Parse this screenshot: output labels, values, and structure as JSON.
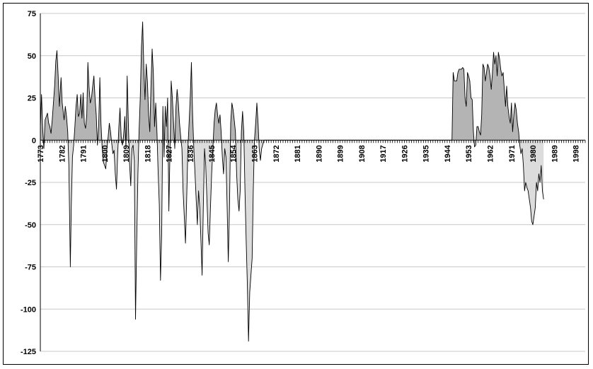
{
  "chart_data": {
    "type": "area",
    "title": "",
    "xlabel": "",
    "ylabel": "",
    "xlim": [
      1773,
      2002
    ],
    "ylim": [
      -125,
      75
    ],
    "y_ticks": [
      -125,
      -100,
      -75,
      -50,
      -25,
      0,
      25,
      50,
      75
    ],
    "x_tick_labels": [
      "1773",
      "1782",
      "1791",
      "1800",
      "1809",
      "1818",
      "1827",
      "1836",
      "1845",
      "1854",
      "1863",
      "1872",
      "1881",
      "1890",
      "1899",
      "1908",
      "1917",
      "1926",
      "1935",
      "1944",
      "1953",
      "1962",
      "1971",
      "1980",
      "1989",
      "1998"
    ],
    "grid": "horizontal",
    "fill_positive": "#b4b4b4",
    "fill_negative": "#dcdcdc",
    "line_color": "#000000",
    "points": [
      [
        1773,
        8
      ],
      [
        1773.5,
        27
      ],
      [
        1774,
        6
      ],
      [
        1774.5,
        -5
      ],
      [
        1775,
        12
      ],
      [
        1776,
        16
      ],
      [
        1776.5,
        10
      ],
      [
        1777,
        8
      ],
      [
        1777.5,
        4
      ],
      [
        1778,
        12
      ],
      [
        1779,
        32
      ],
      [
        1779.5,
        47
      ],
      [
        1780,
        53
      ],
      [
        1780.5,
        38
      ],
      [
        1781,
        20
      ],
      [
        1781.7,
        37
      ],
      [
        1782.2,
        22
      ],
      [
        1783,
        12
      ],
      [
        1783.5,
        20
      ],
      [
        1784,
        14
      ],
      [
        1784.5,
        5
      ],
      [
        1785,
        -15
      ],
      [
        1785.6,
        -75
      ],
      [
        1786,
        -40
      ],
      [
        1786.5,
        -10
      ],
      [
        1787,
        -3
      ],
      [
        1787.5,
        8
      ],
      [
        1788,
        20
      ],
      [
        1788.5,
        27
      ],
      [
        1789,
        14
      ],
      [
        1789.5,
        16
      ],
      [
        1790,
        27
      ],
      [
        1790.5,
        13
      ],
      [
        1791,
        28
      ],
      [
        1791.5,
        10
      ],
      [
        1792,
        7
      ],
      [
        1792.5,
        15
      ],
      [
        1793,
        46
      ],
      [
        1793.5,
        31
      ],
      [
        1794,
        22
      ],
      [
        1794.5,
        25
      ],
      [
        1795,
        32
      ],
      [
        1795.5,
        38
      ],
      [
        1796,
        25
      ],
      [
        1796.5,
        15
      ],
      [
        1797,
        -3
      ],
      [
        1797.5,
        8
      ],
      [
        1798,
        37
      ],
      [
        1798.5,
        10
      ],
      [
        1799,
        -5
      ],
      [
        1799.5,
        -13
      ],
      [
        1800,
        -15
      ],
      [
        1800.5,
        -17
      ],
      [
        1801,
        -5
      ],
      [
        1801.5,
        2
      ],
      [
        1802,
        10
      ],
      [
        1802.5,
        5
      ],
      [
        1803,
        -2
      ],
      [
        1803.5,
        -8
      ],
      [
        1804,
        -6
      ],
      [
        1804.5,
        -20
      ],
      [
        1805,
        -29
      ],
      [
        1805.5,
        -8
      ],
      [
        1806,
        8
      ],
      [
        1806.5,
        19
      ],
      [
        1807,
        2
      ],
      [
        1807.5,
        -3
      ],
      [
        1808,
        3
      ],
      [
        1808.5,
        14
      ],
      [
        1809,
        -5
      ],
      [
        1809.5,
        38
      ],
      [
        1810,
        10
      ],
      [
        1810.5,
        -14
      ],
      [
        1811,
        -27
      ],
      [
        1811.5,
        -5
      ],
      [
        1812,
        -3
      ],
      [
        1812.5,
        -12
      ],
      [
        1813,
        -106
      ],
      [
        1813.5,
        -60
      ],
      [
        1814,
        -20
      ],
      [
        1814.5,
        5
      ],
      [
        1815,
        25
      ],
      [
        1815.5,
        55
      ],
      [
        1816,
        70
      ],
      [
        1816.5,
        42
      ],
      [
        1817,
        24
      ],
      [
        1817.5,
        45
      ],
      [
        1818,
        35
      ],
      [
        1818.5,
        15
      ],
      [
        1819,
        5
      ],
      [
        1819.5,
        33
      ],
      [
        1820,
        54
      ],
      [
        1820.5,
        40
      ],
      [
        1821,
        8
      ],
      [
        1821.5,
        22
      ],
      [
        1822,
        5
      ],
      [
        1822.5,
        -18
      ],
      [
        1823,
        -38
      ],
      [
        1823.5,
        -83
      ],
      [
        1824,
        -55
      ],
      [
        1824.5,
        20
      ],
      [
        1825,
        -10
      ],
      [
        1825.5,
        20
      ],
      [
        1826,
        8
      ],
      [
        1826.5,
        25
      ],
      [
        1827,
        -42
      ],
      [
        1827.5,
        -5
      ],
      [
        1828,
        35
      ],
      [
        1828.5,
        25
      ],
      [
        1829,
        10
      ],
      [
        1829.5,
        -5
      ],
      [
        1830,
        20
      ],
      [
        1830.5,
        30
      ],
      [
        1831,
        22
      ],
      [
        1831.5,
        10
      ],
      [
        1832,
        2
      ],
      [
        1832.5,
        -5
      ],
      [
        1833,
        -30
      ],
      [
        1833.5,
        -45
      ],
      [
        1834,
        -61
      ],
      [
        1834.5,
        -35
      ],
      [
        1835,
        -5
      ],
      [
        1835.5,
        10
      ],
      [
        1836,
        25
      ],
      [
        1836.5,
        46
      ],
      [
        1837,
        15
      ],
      [
        1837.5,
        -5
      ],
      [
        1838,
        -20
      ],
      [
        1838.5,
        -35
      ],
      [
        1839,
        -50
      ],
      [
        1839.5,
        -30
      ],
      [
        1840,
        -40
      ],
      [
        1840.5,
        -60
      ],
      [
        1841,
        -80
      ],
      [
        1841.5,
        -40
      ],
      [
        1842,
        -5
      ],
      [
        1842.5,
        -15
      ],
      [
        1843,
        -35
      ],
      [
        1843.5,
        -55
      ],
      [
        1844,
        -62
      ],
      [
        1844.5,
        -40
      ],
      [
        1845,
        -20
      ],
      [
        1845.5,
        -5
      ],
      [
        1846,
        10
      ],
      [
        1846.5,
        18
      ],
      [
        1847,
        22
      ],
      [
        1847.5,
        15
      ],
      [
        1848,
        10
      ],
      [
        1848.5,
        15
      ],
      [
        1849,
        5
      ],
      [
        1849.5,
        -10
      ],
      [
        1850,
        -20
      ],
      [
        1850.5,
        -5
      ],
      [
        1851,
        -10
      ],
      [
        1851.5,
        -40
      ],
      [
        1852,
        -72
      ],
      [
        1852.5,
        -40
      ],
      [
        1853,
        10
      ],
      [
        1853.5,
        22
      ],
      [
        1854,
        18
      ],
      [
        1854.5,
        12
      ],
      [
        1855,
        5
      ],
      [
        1855.5,
        -20
      ],
      [
        1856,
        -35
      ],
      [
        1856.5,
        -42
      ],
      [
        1857,
        -30
      ],
      [
        1857.5,
        5
      ],
      [
        1858,
        17
      ],
      [
        1858.5,
        5
      ],
      [
        1859,
        -30
      ],
      [
        1859.5,
        -60
      ],
      [
        1860,
        -85
      ],
      [
        1860.5,
        -119
      ],
      [
        1861,
        -90
      ],
      [
        1861.5,
        -80
      ],
      [
        1862,
        -70
      ],
      [
        1862.5,
        -30
      ],
      [
        1863,
        0
      ],
      [
        1863.5,
        10
      ],
      [
        1864,
        22
      ],
      [
        1864.5,
        10
      ],
      [
        1865,
        -5
      ],
      [
        1865.5,
        -12
      ],
      [
        1866,
        -5
      ],
      [
        1867,
        0
      ],
      [
        1946,
        0
      ],
      [
        1946.5,
        40
      ],
      [
        1947,
        35
      ],
      [
        1948,
        35
      ],
      [
        1948.5,
        40
      ],
      [
        1949,
        42
      ],
      [
        1950,
        42
      ],
      [
        1950.5,
        43
      ],
      [
        1951,
        42
      ],
      [
        1951.5,
        25
      ],
      [
        1952,
        20
      ],
      [
        1952.5,
        40
      ],
      [
        1953,
        38
      ],
      [
        1953.5,
        35
      ],
      [
        1954,
        25
      ],
      [
        1954.5,
        24
      ],
      [
        1955,
        5
      ],
      [
        1955.5,
        -4
      ],
      [
        1956,
        -3
      ],
      [
        1956.5,
        8
      ],
      [
        1957,
        8
      ],
      [
        1957.5,
        5
      ],
      [
        1958,
        3
      ],
      [
        1958.5,
        15
      ],
      [
        1959,
        45
      ],
      [
        1959.5,
        43
      ],
      [
        1960,
        35
      ],
      [
        1960.5,
        40
      ],
      [
        1961,
        45
      ],
      [
        1961.5,
        43
      ],
      [
        1962,
        38
      ],
      [
        1962.5,
        30
      ],
      [
        1963,
        40
      ],
      [
        1963.5,
        52
      ],
      [
        1964,
        45
      ],
      [
        1964.5,
        50
      ],
      [
        1965,
        38
      ],
      [
        1965.5,
        52
      ],
      [
        1966,
        48
      ],
      [
        1966.5,
        42
      ],
      [
        1967,
        38
      ],
      [
        1967.5,
        40
      ],
      [
        1968,
        30
      ],
      [
        1968.5,
        20
      ],
      [
        1969,
        32
      ],
      [
        1969.5,
        20
      ],
      [
        1970,
        14
      ],
      [
        1970.5,
        10
      ],
      [
        1971,
        22
      ],
      [
        1971.5,
        5
      ],
      [
        1972,
        15
      ],
      [
        1972.5,
        22
      ],
      [
        1973,
        18
      ],
      [
        1973.5,
        10
      ],
      [
        1974,
        5
      ],
      [
        1974.5,
        -3
      ],
      [
        1975,
        -8
      ],
      [
        1975.5,
        -5
      ],
      [
        1976,
        -15
      ],
      [
        1976.5,
        -30
      ],
      [
        1977,
        -25
      ],
      [
        1977.5,
        -28
      ],
      [
        1978,
        -30
      ],
      [
        1978.5,
        -35
      ],
      [
        1979,
        -40
      ],
      [
        1979.5,
        -48
      ],
      [
        1980,
        -50
      ],
      [
        1980.5,
        -45
      ],
      [
        1981,
        -40
      ],
      [
        1981.5,
        -25
      ],
      [
        1982,
        -30
      ],
      [
        1982.5,
        -20
      ],
      [
        1983,
        -25
      ],
      [
        1983.5,
        -15
      ],
      [
        1984,
        -30
      ],
      [
        1984.5,
        -35
      ]
    ]
  }
}
